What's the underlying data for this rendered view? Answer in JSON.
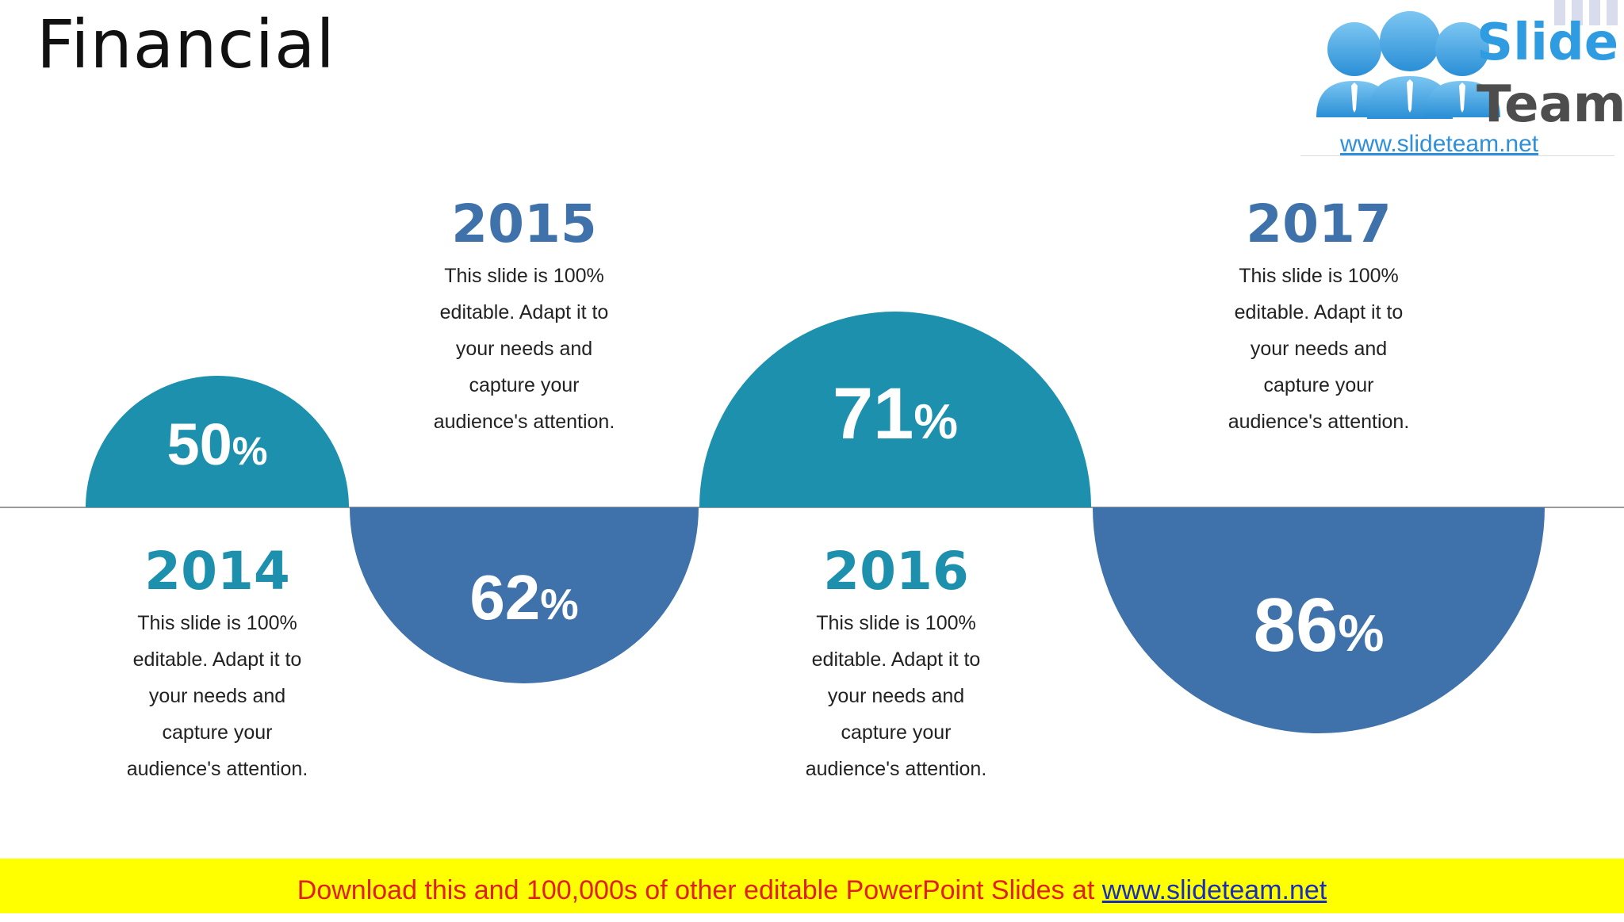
{
  "title": "Financial",
  "logo": {
    "word1": "Slide",
    "word2": "Team",
    "url": "www.slideteam.net"
  },
  "colors": {
    "teal": "#1d90ae",
    "blue": "#3f72aa"
  },
  "items": [
    {
      "year": "2014",
      "percent": 50,
      "pct_text": "50",
      "unit": "%",
      "desc": [
        "This slide is 100%",
        "editable. Adapt it to",
        "your needs and",
        "capture your",
        "audience's attention."
      ]
    },
    {
      "year": "2015",
      "percent": 62,
      "pct_text": "62",
      "unit": "%",
      "desc": [
        "This slide is 100%",
        "editable. Adapt it to",
        "your needs and",
        "capture your",
        "audience's attention."
      ]
    },
    {
      "year": "2016",
      "percent": 71,
      "pct_text": "71",
      "unit": "%",
      "desc": [
        "This slide is 100%",
        "editable. Adapt it to",
        "your needs and",
        "capture your",
        "audience's attention."
      ]
    },
    {
      "year": "2017",
      "percent": 86,
      "pct_text": "86",
      "unit": "%",
      "desc": [
        "This slide is 100%",
        "editable. Adapt it to",
        "your needs and",
        "capture your",
        "audience's attention."
      ]
    }
  ],
  "banner": {
    "text": "Download this and 100,000s of other editable PowerPoint Slides at ",
    "link": "www.slideteam.net"
  }
}
